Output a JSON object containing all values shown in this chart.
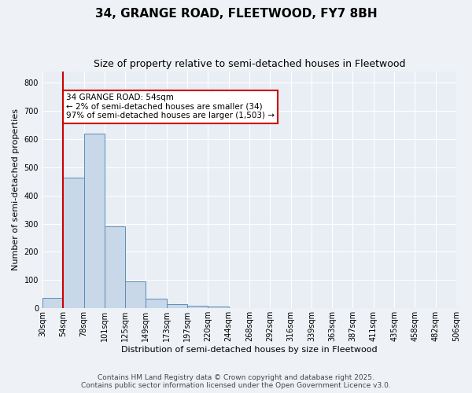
{
  "title": "34, GRANGE ROAD, FLEETWOOD, FY7 8BH",
  "subtitle": "Size of property relative to semi-detached houses in Fleetwood",
  "xlabel": "Distribution of semi-detached houses by size in Fleetwood",
  "ylabel": "Number of semi-detached properties",
  "bins": [
    "30sqm",
    "54sqm",
    "78sqm",
    "101sqm",
    "125sqm",
    "149sqm",
    "173sqm",
    "197sqm",
    "220sqm",
    "244sqm",
    "268sqm",
    "292sqm",
    "316sqm",
    "339sqm",
    "363sqm",
    "387sqm",
    "411sqm",
    "435sqm",
    "458sqm",
    "482sqm",
    "506sqm"
  ],
  "values": [
    38,
    462,
    620,
    290,
    95,
    35,
    15,
    10,
    5,
    0,
    0,
    0,
    0,
    0,
    0,
    0,
    0,
    0,
    0,
    0
  ],
  "bar_color": "#c8d8e8",
  "bar_edge_color": "#5b8db8",
  "highlight_bin_index": 1,
  "highlight_color": "#cc0000",
  "annotation_text": "34 GRANGE ROAD: 54sqm\n← 2% of semi-detached houses are smaller (34)\n97% of semi-detached houses are larger (1,503) →",
  "annotation_box_color": "#cc0000",
  "ylim": [
    0,
    840
  ],
  "yticks": [
    0,
    100,
    200,
    300,
    400,
    500,
    600,
    700,
    800
  ],
  "bg_color": "#e8eef4",
  "grid_color": "#ffffff",
  "footer": "Contains HM Land Registry data © Crown copyright and database right 2025.\nContains public sector information licensed under the Open Government Licence v3.0.",
  "title_fontsize": 11,
  "subtitle_fontsize": 9,
  "label_fontsize": 8,
  "tick_fontsize": 7,
  "footer_fontsize": 6.5,
  "annotation_fontsize": 7.5
}
